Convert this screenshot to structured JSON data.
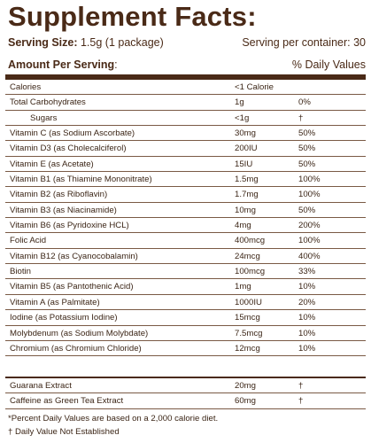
{
  "title": "Supplement Facts:",
  "serving": {
    "size_label": "Serving Size:",
    "size_value": "1.5g (1 package)",
    "per_container": "Serving per container: 30"
  },
  "amount": {
    "label": "Amount Per Serving",
    "colon": ":",
    "daily_values": "% Daily Values"
  },
  "rows": [
    {
      "name": "Calories",
      "amount": "<1 Calorie",
      "dv": ""
    },
    {
      "name": "Total Carbohydrates",
      "amount": "1g",
      "dv": "0%"
    },
    {
      "name": "Sugars",
      "amount": "<1g",
      "dv": "†",
      "indent": true
    },
    {
      "name": "Vitamin C (as Sodium Ascorbate)",
      "amount": "30mg",
      "dv": "50%"
    },
    {
      "name": "Vitamin D3 (as Cholecalciferol)",
      "amount": "200IU",
      "dv": "50%"
    },
    {
      "name": "Vitamin E (as Acetate)",
      "amount": "15IU",
      "dv": "50%"
    },
    {
      "name": "Vitamin B1 (as Thiamine Mononitrate)",
      "amount": "1.5mg",
      "dv": "100%"
    },
    {
      "name": "Vitamin B2 (as Riboflavin)",
      "amount": "1.7mg",
      "dv": "100%"
    },
    {
      "name": "Vitamin B3 (as Niacinamide)",
      "amount": "10mg",
      "dv": "50%"
    },
    {
      "name": "Vitamin B6 (as Pyridoxine HCL)",
      "amount": "4mg",
      "dv": "200%"
    },
    {
      "name": "Folic Acid",
      "amount": "400mcg",
      "dv": "100%"
    },
    {
      "name": "Vitamin B12 (as Cyanocobalamin)",
      "amount": "24mcg",
      "dv": "400%"
    },
    {
      "name": "Biotin",
      "amount": "100mcg",
      "dv": "33%"
    },
    {
      "name": "Vitamin B5 (as Pantothenic Acid)",
      "amount": "1mg",
      "dv": "10%"
    },
    {
      "name": "Vitamin A (as Palmitate)",
      "amount": "1000IU",
      "dv": "20%"
    },
    {
      "name": "Iodine (as Potassium Iodine)",
      "amount": "15mcg",
      "dv": "10%"
    },
    {
      "name": "Molybdenum (as Sodium Molybdate)",
      "amount": "7.5mcg",
      "dv": "10%"
    },
    {
      "name": "Chromium (as Chromium Chloride)",
      "amount": "12mcg",
      "dv": "10%"
    }
  ],
  "extra_rows": [
    {
      "name": "Guarana Extract",
      "amount": "20mg",
      "dv": "†"
    },
    {
      "name": "Caffeine as Green Tea Extract",
      "amount": "60mg",
      "dv": "†"
    }
  ],
  "footnotes": [
    "*Percent Daily Values are based on a 2,000 calorie diet.",
    "† Daily Value Not Established"
  ],
  "colors": {
    "text": "#4a2a17",
    "background": "#ffffff"
  }
}
